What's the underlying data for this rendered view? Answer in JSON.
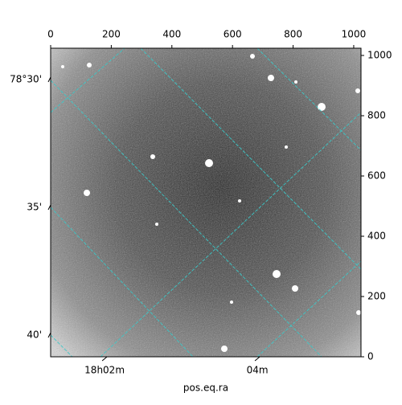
{
  "chart_data": {
    "type": "image",
    "xlabel": "pos.eq.ra",
    "xlim": [
      0,
      1024
    ],
    "ylim": [
      0,
      1024
    ],
    "xticks": [
      0,
      200,
      400,
      600,
      800,
      1000
    ],
    "yticks": [
      0,
      200,
      400,
      600,
      800,
      1000
    ],
    "left_ticks": [
      {
        "value": 920,
        "label": "78°30'"
      },
      {
        "value": 496,
        "label": "35'"
      },
      {
        "value": 72,
        "label": "40'"
      }
    ],
    "bottom_ticks": [
      {
        "value": 178,
        "label": "18h02m"
      },
      {
        "value": 682,
        "label": "04m"
      }
    ]
  }
}
